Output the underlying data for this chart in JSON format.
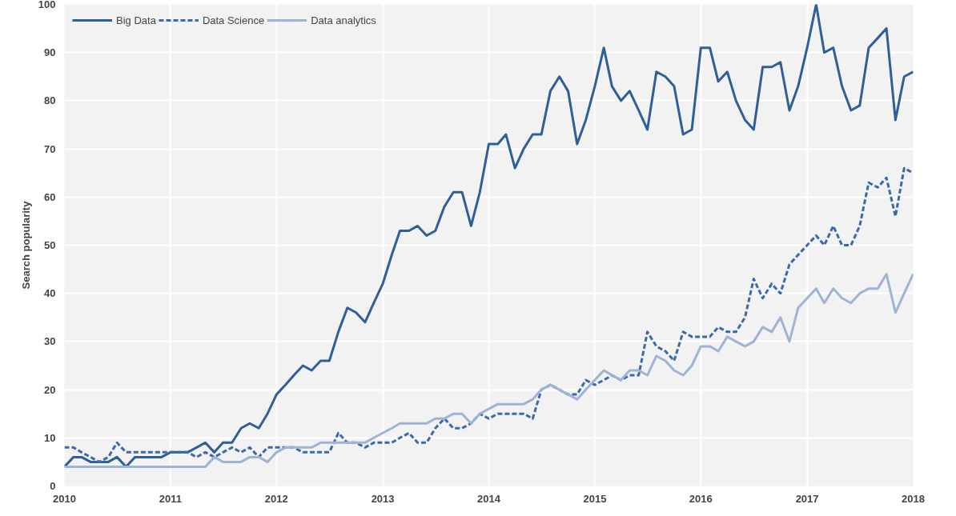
{
  "chart_data": {
    "type": "line",
    "ylabel": "Search popularity",
    "x": [
      "2010-01",
      "2010-02",
      "2010-03",
      "2010-04",
      "2010-05",
      "2010-06",
      "2010-07",
      "2010-08",
      "2010-09",
      "2010-10",
      "2010-11",
      "2010-12",
      "2011-01",
      "2011-02",
      "2011-03",
      "2011-04",
      "2011-05",
      "2011-06",
      "2011-07",
      "2011-08",
      "2011-09",
      "2011-10",
      "2011-11",
      "2011-12",
      "2012-01",
      "2012-02",
      "2012-03",
      "2012-04",
      "2012-05",
      "2012-06",
      "2012-07",
      "2012-08",
      "2012-09",
      "2012-10",
      "2012-11",
      "2012-12",
      "2013-01",
      "2013-02",
      "2013-03",
      "2013-04",
      "2013-05",
      "2013-06",
      "2013-07",
      "2013-08",
      "2013-09",
      "2013-10",
      "2013-11",
      "2013-12",
      "2014-01",
      "2014-02",
      "2014-03",
      "2014-04",
      "2014-05",
      "2014-06",
      "2014-07",
      "2014-08",
      "2014-09",
      "2014-10",
      "2014-11",
      "2014-12",
      "2015-01",
      "2015-02",
      "2015-03",
      "2015-04",
      "2015-05",
      "2015-06",
      "2015-07",
      "2015-08",
      "2015-09",
      "2015-10",
      "2015-11",
      "2015-12",
      "2016-01",
      "2016-02",
      "2016-03",
      "2016-04",
      "2016-05",
      "2016-06",
      "2016-07",
      "2016-08",
      "2016-09",
      "2016-10",
      "2016-11",
      "2016-12",
      "2017-01",
      "2017-02",
      "2017-03",
      "2017-04",
      "2017-05",
      "2017-06",
      "2017-07",
      "2017-08",
      "2017-09",
      "2017-10",
      "2017-11",
      "2017-12",
      "2018-01"
    ],
    "series": [
      {
        "name": "Big Data",
        "color": "#2e5f96",
        "line_style": "solid",
        "values": [
          4,
          6,
          6,
          5,
          5,
          5,
          6,
          4,
          6,
          6,
          6,
          6,
          7,
          7,
          7,
          8,
          9,
          7,
          9,
          9,
          12,
          13,
          12,
          15,
          19,
          21,
          23,
          25,
          24,
          26,
          26,
          32,
          37,
          36,
          34,
          38,
          42,
          48,
          53,
          53,
          54,
          52,
          53,
          58,
          61,
          61,
          54,
          61,
          71,
          71,
          73,
          66,
          70,
          73,
          73,
          82,
          85,
          82,
          71,
          76,
          83,
          91,
          83,
          80,
          82,
          78,
          74,
          86,
          85,
          83,
          73,
          74,
          91,
          91,
          84,
          86,
          80,
          76,
          74,
          87,
          87,
          88,
          78,
          83,
          91,
          100,
          90,
          91,
          83,
          78,
          79,
          91,
          93,
          95,
          76,
          85,
          86
        ]
      },
      {
        "name": "Data Science",
        "color": "#3a6aa8",
        "line_style": "dashed",
        "values": [
          8,
          8,
          7,
          6,
          5,
          6,
          9,
          7,
          7,
          7,
          7,
          7,
          7,
          7,
          7,
          6,
          7,
          6,
          7,
          8,
          7,
          8,
          6,
          8,
          8,
          8,
          8,
          7,
          7,
          7,
          7,
          11,
          9,
          9,
          8,
          9,
          9,
          9,
          10,
          11,
          9,
          9,
          12,
          14,
          12,
          12,
          13,
          15,
          14,
          15,
          15,
          15,
          15,
          14,
          20,
          21,
          20,
          19,
          19,
          22,
          21,
          22,
          23,
          22,
          23,
          23,
          32,
          29,
          28,
          26,
          32,
          31,
          31,
          31,
          33,
          32,
          32,
          35,
          43,
          39,
          42,
          40,
          46,
          48,
          50,
          52,
          50,
          54,
          50,
          50,
          54,
          63,
          62,
          64,
          56,
          66,
          65
        ]
      },
      {
        "name": "Data analytics",
        "color": "#9fb3d3",
        "line_style": "solid",
        "values": [
          4,
          4,
          4,
          4,
          4,
          4,
          4,
          4,
          4,
          4,
          4,
          4,
          4,
          4,
          4,
          4,
          4,
          6,
          5,
          5,
          5,
          6,
          6,
          5,
          7,
          8,
          8,
          8,
          8,
          9,
          9,
          9,
          9,
          9,
          9,
          10,
          11,
          12,
          13,
          13,
          13,
          13,
          14,
          14,
          15,
          15,
          13,
          15,
          16,
          17,
          17,
          17,
          17,
          18,
          20,
          21,
          20,
          19,
          18,
          20,
          22,
          24,
          23,
          22,
          24,
          24,
          23,
          27,
          26,
          24,
          23,
          25,
          29,
          29,
          28,
          31,
          30,
          29,
          30,
          33,
          32,
          35,
          30,
          37,
          39,
          41,
          38,
          41,
          39,
          38,
          40,
          41,
          41,
          44,
          36,
          40,
          44
        ]
      }
    ],
    "xlim": [
      "2010-01",
      "2018-01"
    ],
    "xticks": [
      {
        "value": "2010-01",
        "label": "2010"
      },
      {
        "value": "2011-01",
        "label": "2011"
      },
      {
        "value": "2012-01",
        "label": "2012"
      },
      {
        "value": "2013-01",
        "label": "2013"
      },
      {
        "value": "2014-01",
        "label": "2014"
      },
      {
        "value": "2015-01",
        "label": "2015"
      },
      {
        "value": "2016-01",
        "label": "2016"
      },
      {
        "value": "2017-01",
        "label": "2017"
      },
      {
        "value": "2018-01",
        "label": "2018"
      }
    ],
    "ylim": [
      0,
      100
    ],
    "yticks": [
      0,
      10,
      20,
      30,
      40,
      50,
      60,
      70,
      80,
      90,
      100
    ],
    "grid": true,
    "legend": "top left",
    "marker": "none"
  }
}
